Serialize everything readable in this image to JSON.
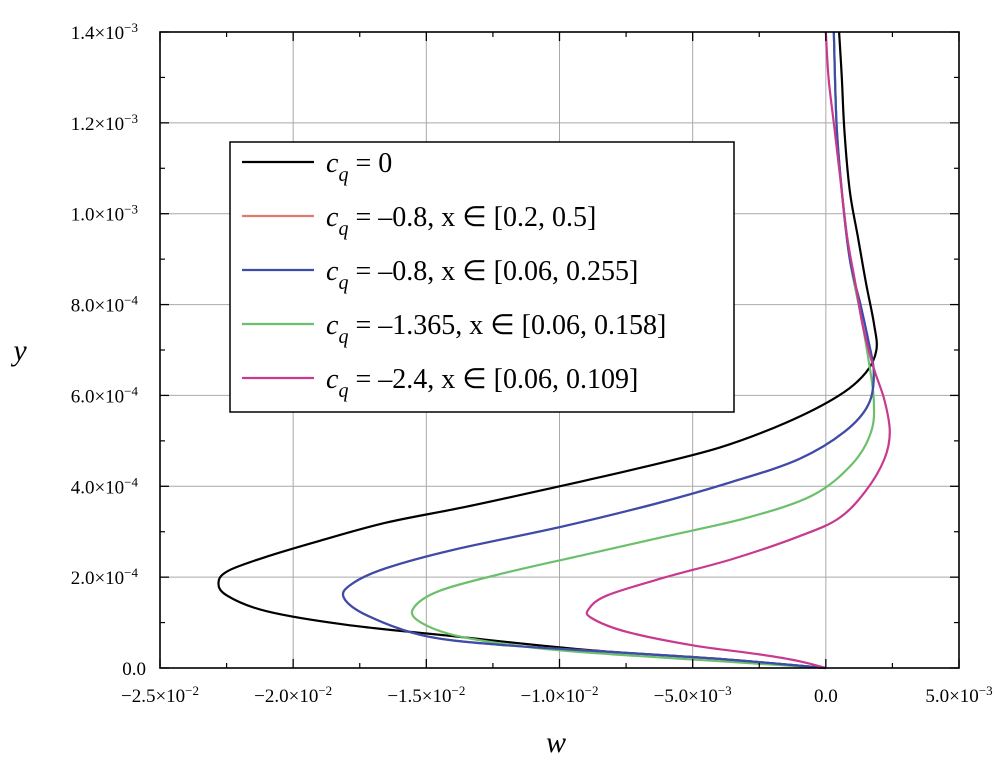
{
  "chart_data": {
    "type": "line",
    "xlabel": "w",
    "ylabel": "y",
    "xlim": [
      -0.025,
      0.005
    ],
    "ylim": [
      0,
      0.0014
    ],
    "grid": true,
    "legend_position": "upper-left",
    "x_ticks": [
      {
        "value": -0.025,
        "label": "−2.5×10",
        "exp": "−2"
      },
      {
        "value": -0.02,
        "label": "−2.0×10",
        "exp": "−2"
      },
      {
        "value": -0.015,
        "label": "−1.5×10",
        "exp": "−2"
      },
      {
        "value": -0.01,
        "label": "−1.0×10",
        "exp": "−2"
      },
      {
        "value": -0.005,
        "label": "−5.0×10",
        "exp": "−3"
      },
      {
        "value": 0,
        "label": "0.0",
        "exp": ""
      },
      {
        "value": 0.005,
        "label": "5.0×10",
        "exp": "−3"
      }
    ],
    "y_ticks": [
      {
        "value": 0,
        "label": "0.0",
        "exp": ""
      },
      {
        "value": 0.0002,
        "label": "2.0×10",
        "exp": "−4"
      },
      {
        "value": 0.0004,
        "label": "4.0×10",
        "exp": "−4"
      },
      {
        "value": 0.0006,
        "label": "6.0×10",
        "exp": "−4"
      },
      {
        "value": 0.0008,
        "label": "8.0×10",
        "exp": "−4"
      },
      {
        "value": 0.001,
        "label": "1.0×10",
        "exp": "−3"
      },
      {
        "value": 0.0012,
        "label": "1.2×10",
        "exp": "−3"
      },
      {
        "value": 0.0014,
        "label": "1.4×10",
        "exp": "−3"
      }
    ],
    "series": [
      {
        "name": "c_q = 0",
        "legend": {
          "sub": "q",
          "rest": " = 0"
        },
        "color": "#000000",
        "points": [
          [
            0,
            0
          ],
          [
            -0.004,
            2e-05
          ],
          [
            -0.009,
            4e-05
          ],
          [
            -0.014,
            7e-05
          ],
          [
            -0.018,
            9.5e-05
          ],
          [
            -0.021,
            0.000125
          ],
          [
            -0.0225,
            0.00016
          ],
          [
            -0.0228,
            0.00019
          ],
          [
            -0.0224,
            0.000215
          ],
          [
            -0.021,
            0.000245
          ],
          [
            -0.019,
            0.00028
          ],
          [
            -0.0165,
            0.00032
          ],
          [
            -0.0135,
            0.000355
          ],
          [
            -0.01,
            0.0004
          ],
          [
            -0.007,
            0.00044
          ],
          [
            -0.004,
            0.000485
          ],
          [
            -0.0015,
            0.00054
          ],
          [
            0.0005,
            0.0006
          ],
          [
            0.0015,
            0.00065
          ],
          [
            0.0019,
            0.0007
          ],
          [
            0.0018,
            0.00076
          ],
          [
            0.0015,
            0.00085
          ],
          [
            0.0012,
            0.00095
          ],
          [
            0.0009,
            0.00105
          ],
          [
            0.0007,
            0.00118
          ],
          [
            0.0006,
            0.0013
          ],
          [
            0.0005,
            0.0014
          ]
        ]
      },
      {
        "name": "c_q = –0.8, x ∈ [0.2, 0.5]",
        "legend": {
          "sub": "q",
          "rest": " = –0.8, x ∈ [0.2, 0.5]"
        },
        "color": "#e07a6e",
        "points": [
          [
            0,
            0
          ],
          [
            -0.004,
            2e-05
          ],
          [
            -0.008,
            3.5e-05
          ],
          [
            -0.012,
            5e-05
          ],
          [
            -0.015,
            7e-05
          ],
          [
            -0.0172,
            0.000115
          ],
          [
            -0.0181,
            0.000155
          ],
          [
            -0.0178,
            0.000185
          ],
          [
            -0.0165,
            0.00022
          ],
          [
            -0.014,
            0.00026
          ],
          [
            -0.01,
            0.00031
          ],
          [
            -0.0065,
            0.00036
          ],
          [
            -0.0035,
            0.00041
          ],
          [
            -0.001,
            0.00046
          ],
          [
            0.0007,
            0.00052
          ],
          [
            0.0016,
            0.00058
          ],
          [
            0.0018,
            0.00065
          ],
          [
            0.0016,
            0.00072
          ],
          [
            0.0013,
            0.0008
          ],
          [
            0.0009,
            0.0009
          ],
          [
            0.0006,
            0.00105
          ],
          [
            0.0004,
            0.0012
          ],
          [
            0.0003,
            0.0014
          ]
        ]
      },
      {
        "name": "c_q = –0.8, x ∈ [0.06, 0.255]",
        "legend": {
          "sub": "q",
          "rest": " = –0.8, x ∈ [0.06, 0.255]"
        },
        "color": "#3a4dab",
        "points": [
          [
            0,
            0
          ],
          [
            -0.004,
            2e-05
          ],
          [
            -0.008,
            3.5e-05
          ],
          [
            -0.012,
            5e-05
          ],
          [
            -0.015,
            7e-05
          ],
          [
            -0.0172,
            0.000115
          ],
          [
            -0.0181,
            0.000155
          ],
          [
            -0.0178,
            0.000185
          ],
          [
            -0.0165,
            0.00022
          ],
          [
            -0.014,
            0.00026
          ],
          [
            -0.01,
            0.00031
          ],
          [
            -0.0065,
            0.00036
          ],
          [
            -0.0035,
            0.00041
          ],
          [
            -0.001,
            0.00046
          ],
          [
            0.0007,
            0.00052
          ],
          [
            0.0016,
            0.00058
          ],
          [
            0.0018,
            0.00065
          ],
          [
            0.0016,
            0.00072
          ],
          [
            0.0013,
            0.0008
          ],
          [
            0.0009,
            0.0009
          ],
          [
            0.0006,
            0.00105
          ],
          [
            0.0004,
            0.0012
          ],
          [
            0.0003,
            0.0014
          ]
        ]
      },
      {
        "name": "c_q = –1.365, x ∈ [0.06, 0.158]",
        "legend": {
          "sub": "q",
          "rest": " = –1.365, x ∈ [0.06, 0.158]"
        },
        "color": "#6cc06c",
        "points": [
          [
            0,
            0
          ],
          [
            -0.004,
            1.5e-05
          ],
          [
            -0.008,
            3e-05
          ],
          [
            -0.011,
            4.5e-05
          ],
          [
            -0.0138,
            7e-05
          ],
          [
            -0.0152,
            0.0001
          ],
          [
            -0.0155,
            0.00013
          ],
          [
            -0.0145,
            0.00017
          ],
          [
            -0.012,
            0.00021
          ],
          [
            -0.009,
            0.00025
          ],
          [
            -0.006,
            0.00029
          ],
          [
            -0.003,
            0.00033
          ],
          [
            -0.0005,
            0.00038
          ],
          [
            0.001,
            0.00045
          ],
          [
            0.0017,
            0.00052
          ],
          [
            0.0018,
            0.00059
          ],
          [
            0.0016,
            0.00068
          ],
          [
            0.0013,
            0.00078
          ],
          [
            0.0009,
            0.0009
          ],
          [
            0.0006,
            0.00105
          ],
          [
            0.0004,
            0.0012
          ],
          [
            0.0003,
            0.0014
          ]
        ]
      },
      {
        "name": "c_q = –2.4, x ∈ [0.06, 0.109]",
        "legend": {
          "sub": "q",
          "rest": " = –2.4, x ∈ [0.06, 0.109]"
        },
        "color": "#c8398f",
        "points": [
          [
            0,
            0
          ],
          [
            -0.001,
            1.5e-05
          ],
          [
            -0.0025,
            3e-05
          ],
          [
            -0.005,
            5e-05
          ],
          [
            -0.0075,
            8e-05
          ],
          [
            -0.0088,
            0.00011
          ],
          [
            -0.0089,
            0.00013
          ],
          [
            -0.0082,
            0.00016
          ],
          [
            -0.006,
            0.0002
          ],
          [
            -0.0035,
            0.00024
          ],
          [
            -0.001,
            0.00029
          ],
          [
            0.0005,
            0.00033
          ],
          [
            0.0015,
            0.00039
          ],
          [
            0.0022,
            0.00046
          ],
          [
            0.0024,
            0.00052
          ],
          [
            0.0022,
            0.00059
          ],
          [
            0.0018,
            0.00066
          ],
          [
            0.0014,
            0.00075
          ],
          [
            0.0011,
            0.00085
          ],
          [
            0.0008,
            0.00095
          ],
          [
            0.0005,
            0.0011
          ],
          [
            0.0003,
            0.0012
          ],
          [
            0.0001,
            0.0013
          ],
          [
            0,
            0.0014
          ]
        ]
      }
    ]
  }
}
